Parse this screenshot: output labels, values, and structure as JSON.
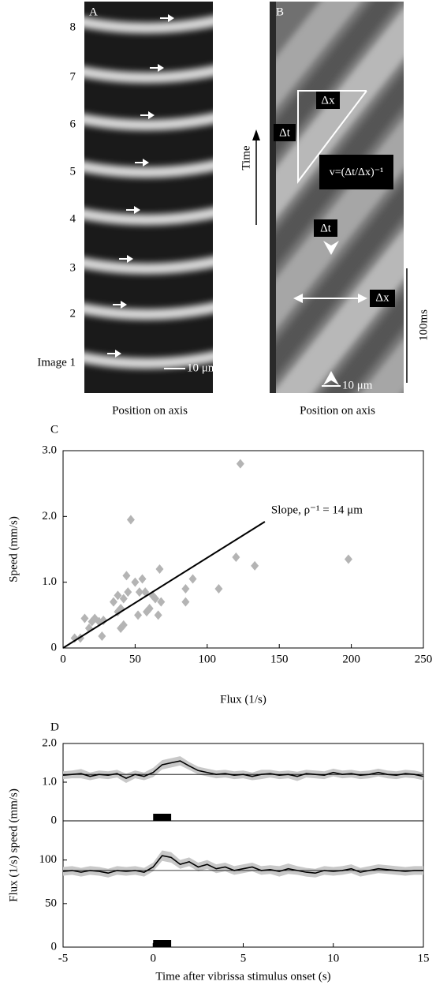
{
  "panel_a": {
    "label": "A",
    "image_labels": [
      "Image 1",
      "2",
      "3",
      "4",
      "5",
      "6",
      "7",
      "8"
    ],
    "scale_bar": "10 μm",
    "xlabel": "Position on axis"
  },
  "panel_b": {
    "label": "B",
    "time_label": "Time",
    "dx_top": "Δx",
    "dt_left": "Δt",
    "formula": "v=(Δt/Δx)⁻¹",
    "dt_mid": "Δt",
    "dx_right": "Δx",
    "time_bar": "100ms",
    "scale_bar": "10 μm",
    "xlabel": "Position on axis"
  },
  "chart_data": [
    {
      "type": "scatter",
      "panel_label": "C",
      "xlabel": "Flux (1/s)",
      "ylabel": "Speed (mm/s)",
      "annotation": "Slope, ρ⁻¹ = 14 μm",
      "x": [
        8,
        12,
        15,
        18,
        20,
        22,
        25,
        27,
        28,
        35,
        38,
        38,
        40,
        40,
        42,
        42,
        44,
        45,
        47,
        50,
        52,
        53,
        55,
        57,
        58,
        60,
        62,
        64,
        66,
        67,
        68,
        85,
        85,
        90,
        108,
        120,
        123,
        133,
        198
      ],
      "values": [
        0.15,
        0.15,
        0.45,
        0.3,
        0.4,
        0.45,
        0.4,
        0.18,
        0.42,
        0.7,
        0.55,
        0.8,
        0.6,
        0.3,
        0.35,
        0.75,
        1.1,
        0.85,
        1.95,
        1.0,
        0.5,
        0.85,
        1.05,
        0.85,
        0.55,
        0.6,
        0.8,
        0.75,
        0.5,
        1.2,
        0.7,
        0.7,
        0.9,
        1.05,
        0.9,
        1.38,
        2.8,
        1.25,
        1.35
      ],
      "color": "#b4b4b4",
      "fit": {
        "x": [
          0,
          140
        ],
        "y": [
          0,
          1.92
        ]
      },
      "xlim": [
        0,
        250
      ],
      "xticks": [
        0,
        50,
        100,
        150,
        200,
        250
      ],
      "ylim": [
        0,
        3
      ],
      "yticks": [
        0,
        {
          "value": 1,
          "label": "1.0"
        },
        {
          "value": 2,
          "label": "2.0"
        },
        {
          "value": 3,
          "label": "3.0"
        }
      ]
    },
    {
      "type": "line",
      "panel_label": "D",
      "ylabel": "Flux (1/s) speed (mm/s)",
      "x": [
        -5,
        -4.5,
        -4,
        -3.5,
        -3,
        -2.5,
        -2,
        -1.5,
        -1,
        -0.5,
        0,
        0.5,
        1,
        1.5,
        2,
        2.5,
        3,
        3.5,
        4,
        4.5,
        5,
        5.5,
        6,
        6.5,
        7,
        7.5,
        8,
        8.5,
        9,
        9.5,
        10,
        10.5,
        11,
        11.5,
        12,
        12.5,
        13,
        13.5,
        14,
        14.5,
        15
      ],
      "series": [
        {
          "color": "#000000",
          "band_color": "#c8c8c8",
          "values": [
            1.18,
            1.2,
            1.22,
            1.15,
            1.2,
            1.18,
            1.22,
            1.1,
            1.2,
            1.15,
            1.25,
            1.45,
            1.5,
            1.55,
            1.42,
            1.3,
            1.25,
            1.2,
            1.22,
            1.18,
            1.2,
            1.15,
            1.2,
            1.22,
            1.18,
            1.2,
            1.15,
            1.22,
            1.2,
            1.18,
            1.25,
            1.2,
            1.22,
            1.18,
            1.2,
            1.25,
            1.2,
            1.18,
            1.22,
            1.2,
            1.15
          ],
          "error": [
            0.1,
            0.1,
            0.12,
            0.1,
            0.1,
            0.1,
            0.1,
            0.12,
            0.1,
            0.1,
            0.12,
            0.12,
            0.12,
            0.12,
            0.1,
            0.1,
            0.1,
            0.1,
            0.1,
            0.1,
            0.1,
            0.1,
            0.12,
            0.1,
            0.1,
            0.1,
            0.12,
            0.1,
            0.1,
            0.1,
            0.1,
            0.1,
            0.1,
            0.1,
            0.1,
            0.1,
            0.1,
            0.1,
            0.1,
            0.1,
            0.1
          ]
        }
      ],
      "hline": 1.2,
      "stimulus": [
        0,
        1
      ],
      "xlim": [
        -5,
        15
      ],
      "ylim": [
        0,
        2
      ],
      "yticks": [
        0,
        {
          "value": 1,
          "label": "1.0"
        },
        {
          "value": 2,
          "label": "2.0"
        }
      ]
    },
    {
      "type": "line",
      "xlabel": "Time after vibrissa stimulus onset (s)",
      "x": [
        -5,
        -4.5,
        -4,
        -3.5,
        -3,
        -2.5,
        -2,
        -1.5,
        -1,
        -0.5,
        0,
        0.5,
        1,
        1.5,
        2,
        2.5,
        3,
        3.5,
        4,
        4.5,
        5,
        5.5,
        6,
        6.5,
        7,
        7.5,
        8,
        8.5,
        9,
        9.5,
        10,
        10.5,
        11,
        11.5,
        12,
        12.5,
        13,
        13.5,
        14,
        14.5,
        15
      ],
      "series": [
        {
          "color": "#000000",
          "band_color": "#c8c8c8",
          "values": [
            87,
            88,
            86,
            88,
            87,
            85,
            88,
            87,
            88,
            86,
            92,
            105,
            103,
            95,
            98,
            92,
            95,
            90,
            92,
            88,
            90,
            92,
            88,
            89,
            87,
            90,
            88,
            86,
            85,
            88,
            87,
            88,
            90,
            86,
            88,
            90,
            89,
            88,
            87,
            88,
            88
          ],
          "error": [
            5,
            5,
            5,
            5,
            5,
            5,
            5,
            5,
            5,
            5,
            5,
            6,
            6,
            5,
            5,
            5,
            5,
            5,
            5,
            5,
            5,
            5,
            5,
            5,
            6,
            6,
            5,
            5,
            5,
            5,
            5,
            5,
            5,
            5,
            5,
            5,
            5,
            5,
            5,
            5,
            5
          ]
        }
      ],
      "hline": 88,
      "stimulus": [
        0,
        1
      ],
      "xlim": [
        -5,
        15
      ],
      "xticks": [
        -5,
        0,
        5,
        10,
        15
      ],
      "ylim": [
        0,
        145
      ],
      "yticks": [
        0,
        50,
        100
      ]
    }
  ]
}
